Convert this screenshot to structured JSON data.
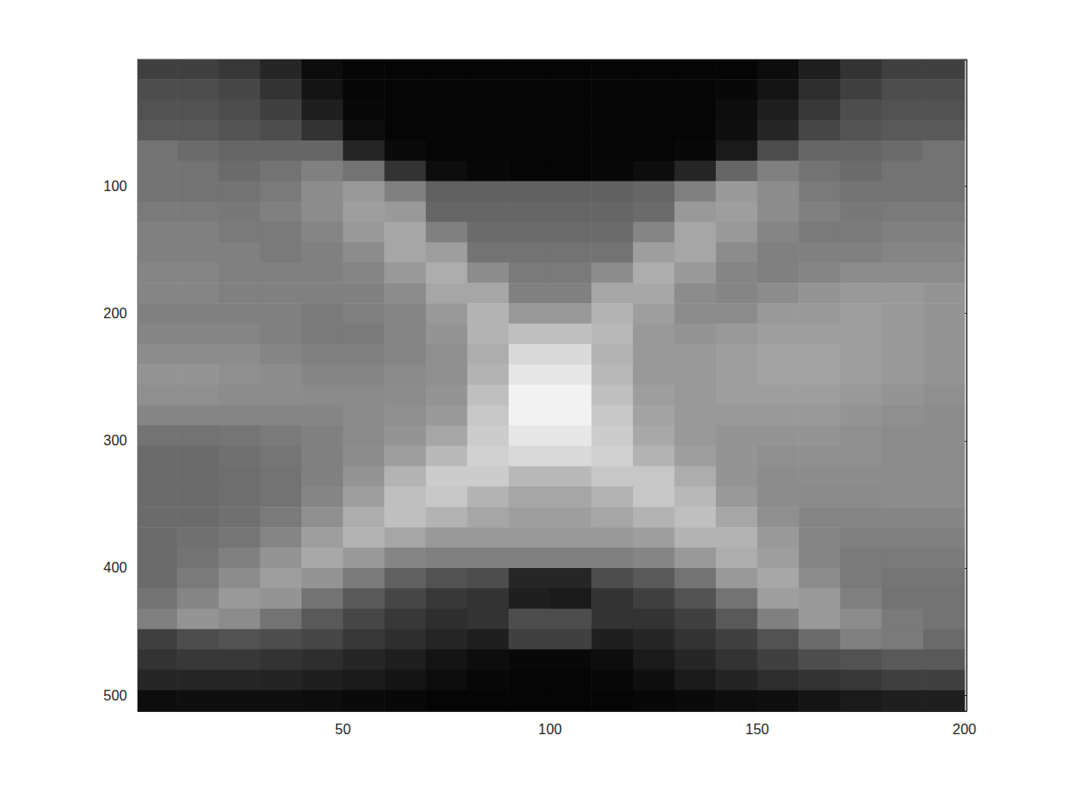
{
  "chart_data": {
    "type": "heatmap",
    "color": "gray",
    "grid": false,
    "xlim": [
      0.5,
      200.5
    ],
    "ylim": [
      512.5,
      0.5
    ],
    "xticks": [
      50,
      100,
      150,
      200
    ],
    "yticks": [
      100,
      200,
      300,
      400,
      500
    ],
    "zlim": [
      0,
      1
    ],
    "x": [
      5,
      15,
      25,
      35,
      45,
      55,
      65,
      75,
      85,
      95,
      105,
      115,
      125,
      135,
      145,
      155,
      165,
      175,
      185,
      195
    ],
    "y": [
      8,
      24,
      40,
      56,
      72,
      88,
      104,
      120,
      136,
      152,
      168,
      184,
      200,
      216,
      232,
      248,
      264,
      280,
      296,
      312,
      328,
      344,
      360,
      376,
      392,
      408,
      424,
      440,
      456,
      472,
      488,
      504
    ],
    "cells": [
      [
        0.25,
        0.25,
        0.22,
        0.15,
        0.05,
        0.02,
        0.02,
        0.02,
        0.02,
        0.02,
        0.02,
        0.02,
        0.02,
        0.02,
        0.02,
        0.05,
        0.12,
        0.2,
        0.25,
        0.25
      ],
      [
        0.3,
        0.3,
        0.28,
        0.2,
        0.08,
        0.02,
        0.02,
        0.02,
        0.02,
        0.02,
        0.02,
        0.02,
        0.02,
        0.02,
        0.03,
        0.08,
        0.18,
        0.25,
        0.3,
        0.3
      ],
      [
        0.32,
        0.32,
        0.3,
        0.25,
        0.12,
        0.03,
        0.02,
        0.02,
        0.02,
        0.02,
        0.02,
        0.02,
        0.02,
        0.02,
        0.05,
        0.12,
        0.22,
        0.3,
        0.32,
        0.32
      ],
      [
        0.35,
        0.35,
        0.33,
        0.3,
        0.2,
        0.05,
        0.02,
        0.02,
        0.02,
        0.02,
        0.02,
        0.02,
        0.02,
        0.02,
        0.06,
        0.15,
        0.28,
        0.33,
        0.35,
        0.35
      ],
      [
        0.45,
        0.42,
        0.4,
        0.4,
        0.4,
        0.15,
        0.04,
        0.02,
        0.02,
        0.02,
        0.02,
        0.02,
        0.02,
        0.03,
        0.1,
        0.3,
        0.4,
        0.4,
        0.42,
        0.45
      ],
      [
        0.45,
        0.45,
        0.42,
        0.45,
        0.5,
        0.45,
        0.2,
        0.05,
        0.03,
        0.02,
        0.02,
        0.03,
        0.05,
        0.15,
        0.4,
        0.5,
        0.45,
        0.42,
        0.45,
        0.45
      ],
      [
        0.45,
        0.45,
        0.45,
        0.48,
        0.55,
        0.6,
        0.5,
        0.38,
        0.38,
        0.38,
        0.38,
        0.38,
        0.4,
        0.5,
        0.6,
        0.55,
        0.48,
        0.45,
        0.45,
        0.45
      ],
      [
        0.48,
        0.48,
        0.47,
        0.5,
        0.55,
        0.62,
        0.6,
        0.4,
        0.4,
        0.4,
        0.4,
        0.4,
        0.42,
        0.6,
        0.62,
        0.55,
        0.5,
        0.47,
        0.48,
        0.48
      ],
      [
        0.5,
        0.5,
        0.48,
        0.48,
        0.52,
        0.6,
        0.65,
        0.5,
        0.42,
        0.42,
        0.42,
        0.42,
        0.52,
        0.65,
        0.6,
        0.52,
        0.48,
        0.48,
        0.5,
        0.5
      ],
      [
        0.5,
        0.5,
        0.5,
        0.48,
        0.5,
        0.55,
        0.65,
        0.62,
        0.45,
        0.45,
        0.45,
        0.45,
        0.62,
        0.65,
        0.55,
        0.5,
        0.5,
        0.5,
        0.52,
        0.52
      ],
      [
        0.52,
        0.52,
        0.5,
        0.5,
        0.5,
        0.52,
        0.6,
        0.68,
        0.55,
        0.48,
        0.48,
        0.55,
        0.68,
        0.6,
        0.52,
        0.5,
        0.52,
        0.55,
        0.55,
        0.55
      ],
      [
        0.52,
        0.52,
        0.5,
        0.5,
        0.5,
        0.5,
        0.55,
        0.65,
        0.65,
        0.5,
        0.5,
        0.65,
        0.65,
        0.55,
        0.52,
        0.55,
        0.58,
        0.6,
        0.6,
        0.58
      ],
      [
        0.5,
        0.5,
        0.5,
        0.5,
        0.48,
        0.5,
        0.52,
        0.6,
        0.7,
        0.6,
        0.6,
        0.7,
        0.62,
        0.55,
        0.55,
        0.6,
        0.6,
        0.62,
        0.6,
        0.58
      ],
      [
        0.52,
        0.52,
        0.52,
        0.5,
        0.48,
        0.48,
        0.52,
        0.58,
        0.7,
        0.75,
        0.75,
        0.72,
        0.6,
        0.58,
        0.6,
        0.62,
        0.62,
        0.62,
        0.6,
        0.58
      ],
      [
        0.55,
        0.55,
        0.55,
        0.52,
        0.5,
        0.5,
        0.52,
        0.56,
        0.68,
        0.85,
        0.85,
        0.7,
        0.6,
        0.6,
        0.62,
        0.64,
        0.64,
        0.62,
        0.6,
        0.58
      ],
      [
        0.58,
        0.58,
        0.56,
        0.55,
        0.52,
        0.52,
        0.54,
        0.56,
        0.7,
        0.9,
        0.9,
        0.72,
        0.6,
        0.6,
        0.62,
        0.64,
        0.64,
        0.62,
        0.6,
        0.58
      ],
      [
        0.56,
        0.56,
        0.55,
        0.55,
        0.54,
        0.54,
        0.55,
        0.58,
        0.75,
        0.95,
        0.95,
        0.75,
        0.62,
        0.6,
        0.62,
        0.62,
        0.62,
        0.6,
        0.58,
        0.56
      ],
      [
        0.52,
        0.52,
        0.52,
        0.52,
        0.52,
        0.54,
        0.56,
        0.6,
        0.78,
        0.95,
        0.95,
        0.78,
        0.64,
        0.6,
        0.6,
        0.6,
        0.6,
        0.58,
        0.56,
        0.55
      ],
      [
        0.45,
        0.45,
        0.46,
        0.48,
        0.5,
        0.54,
        0.58,
        0.65,
        0.8,
        0.9,
        0.9,
        0.8,
        0.66,
        0.6,
        0.58,
        0.58,
        0.58,
        0.56,
        0.55,
        0.55
      ],
      [
        0.42,
        0.42,
        0.44,
        0.46,
        0.5,
        0.55,
        0.62,
        0.72,
        0.82,
        0.85,
        0.85,
        0.82,
        0.7,
        0.62,
        0.58,
        0.56,
        0.56,
        0.56,
        0.55,
        0.55
      ],
      [
        0.42,
        0.42,
        0.43,
        0.45,
        0.5,
        0.58,
        0.7,
        0.8,
        0.8,
        0.72,
        0.72,
        0.78,
        0.78,
        0.68,
        0.58,
        0.55,
        0.55,
        0.55,
        0.55,
        0.55
      ],
      [
        0.42,
        0.42,
        0.43,
        0.45,
        0.52,
        0.62,
        0.75,
        0.78,
        0.7,
        0.65,
        0.65,
        0.7,
        0.78,
        0.72,
        0.6,
        0.55,
        0.54,
        0.54,
        0.55,
        0.55
      ],
      [
        0.42,
        0.42,
        0.44,
        0.48,
        0.56,
        0.68,
        0.75,
        0.7,
        0.65,
        0.62,
        0.62,
        0.65,
        0.7,
        0.75,
        0.65,
        0.56,
        0.52,
        0.52,
        0.52,
        0.52
      ],
      [
        0.42,
        0.44,
        0.46,
        0.52,
        0.62,
        0.7,
        0.65,
        0.6,
        0.6,
        0.6,
        0.6,
        0.6,
        0.62,
        0.7,
        0.7,
        0.6,
        0.52,
        0.5,
        0.5,
        0.5
      ],
      [
        0.42,
        0.45,
        0.5,
        0.58,
        0.66,
        0.6,
        0.52,
        0.5,
        0.5,
        0.5,
        0.5,
        0.5,
        0.52,
        0.6,
        0.68,
        0.62,
        0.52,
        0.48,
        0.48,
        0.48
      ],
      [
        0.42,
        0.48,
        0.55,
        0.62,
        0.58,
        0.48,
        0.38,
        0.32,
        0.3,
        0.15,
        0.15,
        0.3,
        0.35,
        0.45,
        0.6,
        0.65,
        0.55,
        0.48,
        0.46,
        0.46
      ],
      [
        0.45,
        0.52,
        0.6,
        0.58,
        0.45,
        0.35,
        0.28,
        0.22,
        0.2,
        0.12,
        0.1,
        0.2,
        0.25,
        0.32,
        0.45,
        0.62,
        0.6,
        0.5,
        0.45,
        0.45
      ],
      [
        0.5,
        0.58,
        0.55,
        0.45,
        0.35,
        0.28,
        0.22,
        0.18,
        0.2,
        0.3,
        0.3,
        0.2,
        0.2,
        0.25,
        0.35,
        0.5,
        0.6,
        0.55,
        0.48,
        0.45
      ],
      [
        0.25,
        0.3,
        0.32,
        0.3,
        0.28,
        0.22,
        0.18,
        0.15,
        0.12,
        0.25,
        0.25,
        0.12,
        0.15,
        0.2,
        0.25,
        0.32,
        0.42,
        0.5,
        0.48,
        0.42
      ],
      [
        0.2,
        0.22,
        0.22,
        0.2,
        0.18,
        0.15,
        0.12,
        0.08,
        0.05,
        0.03,
        0.03,
        0.05,
        0.1,
        0.15,
        0.2,
        0.25,
        0.3,
        0.32,
        0.35,
        0.35
      ],
      [
        0.15,
        0.15,
        0.15,
        0.14,
        0.12,
        0.1,
        0.08,
        0.05,
        0.03,
        0.02,
        0.02,
        0.03,
        0.06,
        0.1,
        0.14,
        0.18,
        0.2,
        0.22,
        0.25,
        0.25
      ],
      [
        0.05,
        0.06,
        0.06,
        0.06,
        0.05,
        0.04,
        0.03,
        0.02,
        0.02,
        0.02,
        0.02,
        0.02,
        0.03,
        0.04,
        0.05,
        0.06,
        0.08,
        0.1,
        0.12,
        0.12
      ]
    ]
  }
}
